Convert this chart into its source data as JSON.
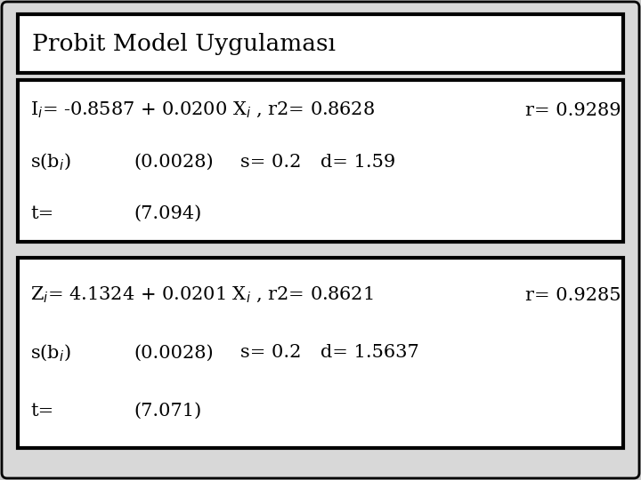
{
  "title": "Probit Model Uygulaması",
  "bg_color": "#c8c8c8",
  "outer_bg": "#c8c8c8",
  "box_bg": "white",
  "font_size_title": 19,
  "font_size_body": 15,
  "font_family": "DejaVu Serif",
  "box1": {
    "line1_main": "I$_{i}$= -0.8587 + 0.0200 X$_{i}$ , r2= 0.8628",
    "line1_r": "r= 0.9289",
    "line2_col1": "s(b$_{i}$)",
    "line2_col2": "(0.0028)",
    "line2_col3": "s= 0.2",
    "line2_col4": "d= 1.59",
    "line3_col1": "t=",
    "line3_col2": "(7.094)"
  },
  "box2": {
    "line1_main": "Z$_{i}$= 4.1324 + 0.0201 X$_{i}$ , r2= 0.8621",
    "line1_r": "r= 0.9285",
    "line2_col1": "s(b$_{i}$)",
    "line2_col2": "(0.0028)",
    "line2_col3": "s= 0.2",
    "line2_col4": "d= 1.5637",
    "line3_col1": "t=",
    "line3_col2": "(7.071)"
  }
}
